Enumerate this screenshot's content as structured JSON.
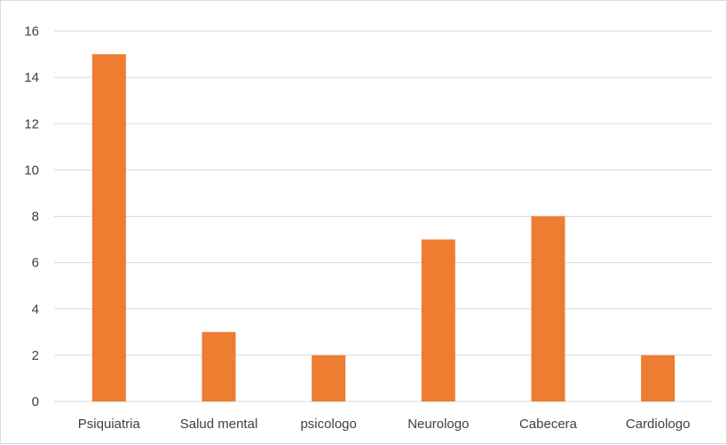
{
  "chart_data": {
    "type": "bar",
    "title": "",
    "xlabel": "",
    "ylabel": "",
    "categories": [
      "Psiquiatria",
      "Salud mental",
      "psicologo",
      "Neurologo",
      "Cabecera",
      "Cardiologo"
    ],
    "values": [
      15,
      3,
      2,
      7,
      8,
      2
    ],
    "ylim": [
      0,
      16
    ],
    "yticks": [
      "0",
      "2",
      "4",
      "6",
      "8",
      "10",
      "12",
      "14",
      "16"
    ],
    "grid": true,
    "legend": "none",
    "bar_color": "#ED7D31",
    "grid_color": "#D9D9D9",
    "text_color": "#404040"
  }
}
